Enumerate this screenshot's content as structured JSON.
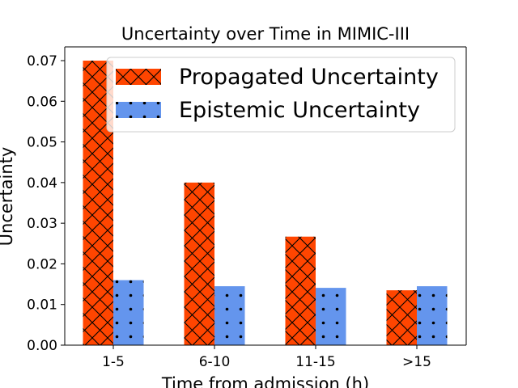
{
  "chart_data": {
    "type": "bar",
    "title": "Uncertainty over Time in MIMIC-III",
    "xlabel": "Time from admission (h)",
    "ylabel": "Uncertainty",
    "categories": [
      "1-5",
      "6-10",
      "11-15",
      ">15"
    ],
    "series": [
      {
        "name": "Propagated Uncertainty",
        "values": [
          0.07,
          0.04,
          0.0267,
          0.0135
        ],
        "color": "#FF4500",
        "hatch": "cross-x"
      },
      {
        "name": "Epistemic Uncertainty",
        "values": [
          0.016,
          0.0145,
          0.0141,
          0.0145
        ],
        "color": "#6495ED",
        "hatch": "dots"
      }
    ],
    "ylim": [
      0,
      0.07
    ],
    "yticks": [
      0.0,
      0.01,
      0.02,
      0.03,
      0.04,
      0.05,
      0.06,
      0.07
    ],
    "ytick_labels": [
      "0.00",
      "0.01",
      "0.02",
      "0.03",
      "0.04",
      "0.05",
      "0.06",
      "0.07"
    ],
    "legend_position": "top-right",
    "grid": false
  }
}
